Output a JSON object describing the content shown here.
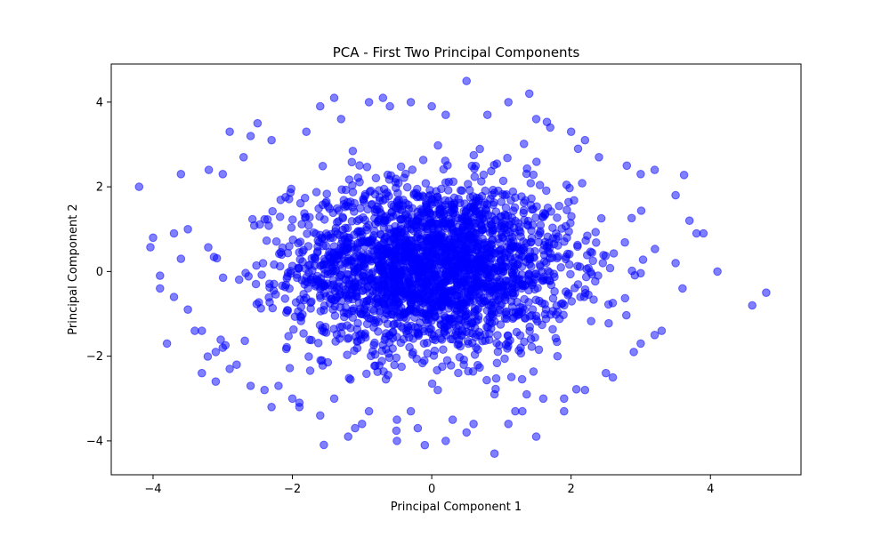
{
  "chart_data": {
    "type": "scatter",
    "title": "PCA - First Two Principal Components",
    "xlabel": "Principal Component 1",
    "ylabel": "Principal Component 2",
    "xlim": [
      -4.6,
      5.3
    ],
    "ylim": [
      -4.8,
      4.9
    ],
    "x_ticks": [
      -4,
      -2,
      0,
      2,
      4
    ],
    "y_ticks": [
      -4,
      -2,
      0,
      2,
      4
    ],
    "x_tick_labels": [
      "−4",
      "−2",
      "0",
      "2",
      "4"
    ],
    "y_tick_labels": [
      "−4",
      "−2",
      "0",
      "2",
      "4"
    ],
    "grid": false,
    "legend": "none",
    "marker_color": "#0000ff",
    "marker_alpha": 0.5,
    "core_region": {
      "center": [
        0.0,
        0.1
      ],
      "std": [
        1.0,
        1.0
      ]
    },
    "series": [
      {
        "x": [
          -4.2,
          -4.0,
          -3.9,
          -3.7,
          -3.6,
          -3.6,
          -3.8,
          -3.7,
          -3.5,
          -3.3,
          -3.2,
          -3.0,
          -2.9,
          -2.6,
          -2.7,
          -3.3,
          -3.1,
          -2.5,
          -2.3,
          -1.8,
          -1.6,
          -1.4,
          -1.3,
          -0.9,
          -0.7,
          -0.6,
          -0.3,
          0.0,
          0.2,
          0.5,
          0.8,
          1.1,
          1.4,
          1.5,
          1.7,
          2.2,
          2.8,
          3.0,
          3.2,
          3.5,
          3.7,
          3.9,
          4.1,
          4.6,
          4.8,
          3.3,
          3.0,
          2.6,
          2.2,
          1.9,
          1.5,
          1.1,
          0.9,
          0.5,
          0.2,
          -0.2,
          -0.5,
          -0.9,
          -1.2,
          -1.6,
          -1.9,
          -2.3,
          -2.6,
          -2.9,
          -3.1,
          -3.4,
          3.6,
          3.2,
          2.9,
          2.5,
          1.9,
          1.6,
          1.2,
          0.9,
          0.3,
          -0.1,
          -0.5,
          -1.0,
          -1.4,
          -1.9,
          -2.4,
          -2.8,
          -3.0,
          -3.5,
          -3.9,
          3.8,
          3.5,
          2.4,
          2.1,
          -2.2,
          -2.0,
          0.6,
          -0.3,
          1.3,
          -1.1,
          2.0
        ],
        "y": [
          2.0,
          0.8,
          -0.1,
          0.9,
          2.3,
          0.3,
          -1.7,
          -0.6,
          1.0,
          -1.4,
          2.4,
          2.3,
          3.3,
          3.2,
          2.7,
          -2.4,
          -2.6,
          3.5,
          3.1,
          3.3,
          3.9,
          4.1,
          3.6,
          4.0,
          4.1,
          3.9,
          4.0,
          3.9,
          3.7,
          4.5,
          3.7,
          4.0,
          4.2,
          3.6,
          3.4,
          3.1,
          2.5,
          2.3,
          2.4,
          1.8,
          1.2,
          0.9,
          0.0,
          -0.8,
          -0.5,
          -1.4,
          -1.7,
          -2.5,
          -2.8,
          -3.0,
          -3.9,
          -3.6,
          -4.3,
          -3.8,
          -4.0,
          -3.7,
          -3.5,
          -3.3,
          -3.9,
          -3.4,
          -3.1,
          -3.2,
          -2.7,
          -2.3,
          -1.9,
          -1.4,
          -0.4,
          -1.5,
          -1.9,
          -2.4,
          -3.3,
          -3.0,
          -3.3,
          -2.9,
          -3.5,
          -4.1,
          -4.0,
          -3.6,
          -3.0,
          -3.2,
          -2.8,
          -2.2,
          -1.8,
          -0.9,
          -0.4,
          0.9,
          0.2,
          2.7,
          2.9,
          -2.7,
          -3.0,
          -3.6,
          -3.3,
          -3.3,
          -3.7,
          3.3
        ]
      }
    ]
  }
}
